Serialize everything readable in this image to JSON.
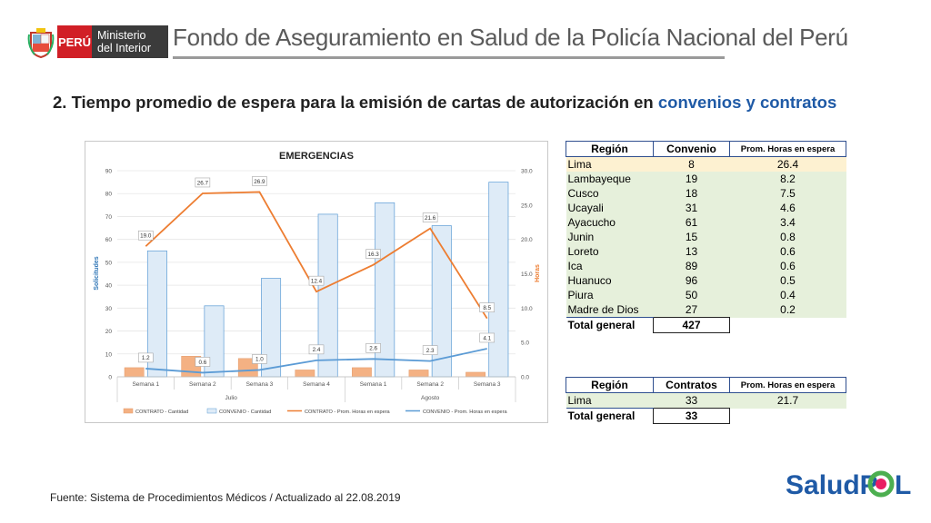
{
  "header": {
    "peru": "PERÚ",
    "ministry_line1": "Ministerio",
    "ministry_line2": "del Interior",
    "fund_title": "Fondo de Aseguramiento en Salud de la Policía Nacional del Perú"
  },
  "slide": {
    "title_prefix": "2. Tiempo promedio de espera para la emisión de cartas de autorización en ",
    "title_highlight": "convenios y contratos"
  },
  "footer": {
    "source": "Fuente: Sistema de Procedimientos Médicos / Actualizado al 22.08.2019"
  },
  "logo": {
    "text": "SaludP",
    "text2": "L"
  },
  "colors": {
    "contrato": "#f4b183",
    "convenio": "#deebf7",
    "contrato_line": "#ed7d31",
    "convenio_line": "#5b9bd5",
    "accent": "#1f5aa6"
  },
  "chart_data": {
    "type": "bar",
    "title": "EMERGENCIAS",
    "ylabel": "Solicitudes",
    "y2label": "Horas",
    "ylim": [
      0,
      90
    ],
    "y2lim": [
      0,
      30
    ],
    "yticks": [
      "0",
      "10",
      "20",
      "30",
      "40",
      "50",
      "60",
      "70",
      "80",
      "90"
    ],
    "y2ticks": [
      "0.0",
      "5.0",
      "10.0",
      "15.0",
      "20.0",
      "25.0",
      "30.0"
    ],
    "categories": [
      "Semana 1",
      "Semana 2",
      "Semana 3",
      "Semana 4",
      "Semana 1",
      "Semana 2",
      "Semana 3"
    ],
    "groups": [
      {
        "label": "Julio",
        "span": 4
      },
      {
        "label": "Agosto",
        "span": 3
      }
    ],
    "series": [
      {
        "name": "CONTRATO - Cantidad",
        "kind": "bar",
        "axis": "left",
        "values": [
          4,
          9,
          8,
          3,
          4,
          3,
          2
        ]
      },
      {
        "name": "CONVENIO - Cantidad",
        "kind": "bar",
        "axis": "left",
        "values": [
          55,
          31,
          43,
          71,
          76,
          66,
          85
        ]
      },
      {
        "name": "CONTRATO - Prom. Horas en espera",
        "kind": "line",
        "axis": "right",
        "values": [
          19.0,
          26.7,
          26.9,
          12.4,
          16.3,
          21.6,
          8.5
        ],
        "labels": [
          "19.0",
          "26.7",
          "26.9",
          "12.4",
          "16.3",
          "21.6",
          "8.5"
        ]
      },
      {
        "name": "CONVENIO - Prom. Horas en espera",
        "kind": "line",
        "axis": "right",
        "values": [
          1.2,
          0.6,
          1.0,
          2.4,
          2.6,
          2.3,
          4.1
        ],
        "labels": [
          "1.2",
          "0.6",
          "1.0",
          "2.4",
          "2.6",
          "2.3",
          "4.1"
        ]
      }
    ],
    "legend": "bottom"
  },
  "table_convenio": {
    "headers": [
      "Región",
      "Convenio",
      "Prom. Horas en espera"
    ],
    "rows": [
      [
        "Lima",
        "8",
        "26.4"
      ],
      [
        "Lambayeque",
        "19",
        "8.2"
      ],
      [
        "Cusco",
        "18",
        "7.5"
      ],
      [
        "Ucayali",
        "31",
        "4.6"
      ],
      [
        "Ayacucho",
        "61",
        "3.4"
      ],
      [
        "Junin",
        "15",
        "0.8"
      ],
      [
        "Loreto",
        "13",
        "0.6"
      ],
      [
        "Ica",
        "89",
        "0.6"
      ],
      [
        "Huanuco",
        "96",
        "0.5"
      ],
      [
        "Piura",
        "50",
        "0.4"
      ],
      [
        "Madre de Dios",
        "27",
        "0.2"
      ]
    ],
    "total_label": "Total general",
    "total_value": "427"
  },
  "table_contrato": {
    "headers": [
      "Región",
      "Contratos",
      "Prom. Horas en espera"
    ],
    "rows": [
      [
        "Lima",
        "33",
        "21.7"
      ]
    ],
    "total_label": "Total general",
    "total_value": "33"
  }
}
